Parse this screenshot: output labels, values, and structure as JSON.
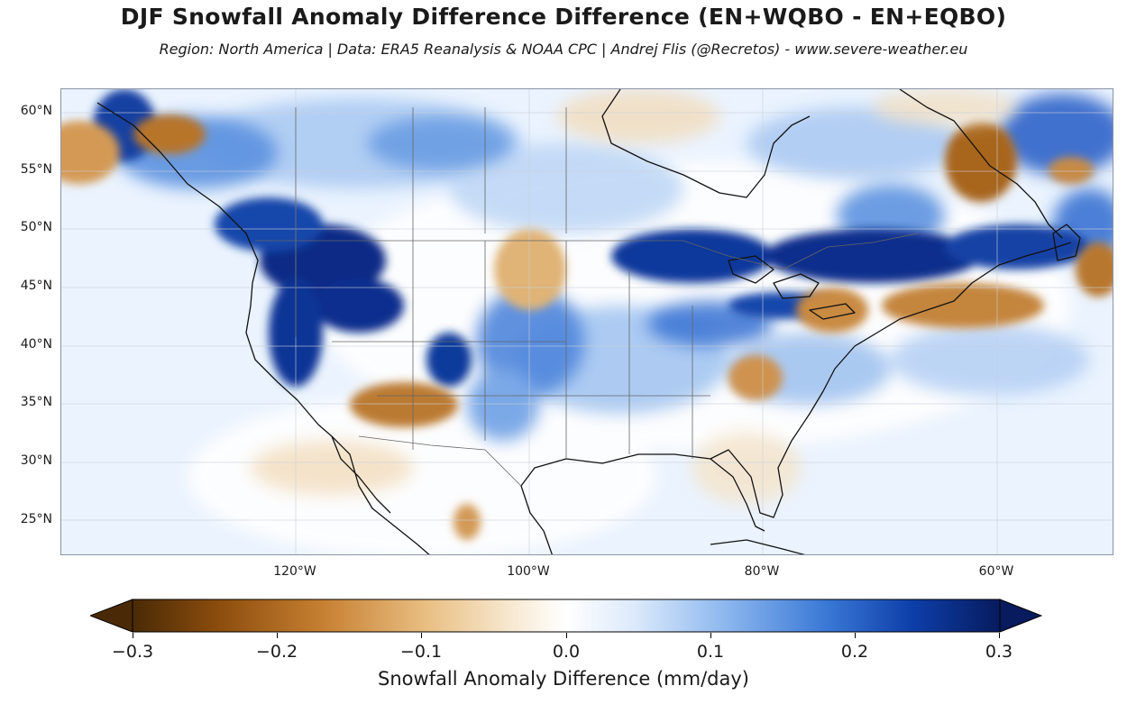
{
  "title": "DJF Snowfall Anomaly Difference Difference (EN+WQBO - EN+EQBO)",
  "subtitle": "Region: North America | Data: ERA5 Reanalysis & NOAA CPC | Andrej Flis (@Recretos) - www.severe-weather.eu",
  "latitude_labels": [
    "60°N",
    "55°N",
    "50°N",
    "45°N",
    "40°N",
    "35°N",
    "30°N",
    "25°N"
  ],
  "longitude_labels": [
    "120°W",
    "100°W",
    "80°W",
    "60°W"
  ],
  "colorbar": {
    "label": "Snowfall Anomaly Difference (mm/day)",
    "ticks": [
      "−0.3",
      "−0.2",
      "−0.1",
      "0.0",
      "0.1",
      "0.2",
      "0.3"
    ],
    "range": [
      -0.3,
      0.3
    ],
    "extend": "both",
    "colormap": [
      "#4a2a06",
      "#8c4d0d",
      "#c78032",
      "#e9bf83",
      "#f8ead4",
      "#ffffff",
      "#dbe9fb",
      "#8fb9ef",
      "#3a78d6",
      "#0d3ea8",
      "#071b5e"
    ]
  },
  "colors": {
    "ocean_background": "#eaf3fe",
    "frame": "#8a94a6"
  }
}
